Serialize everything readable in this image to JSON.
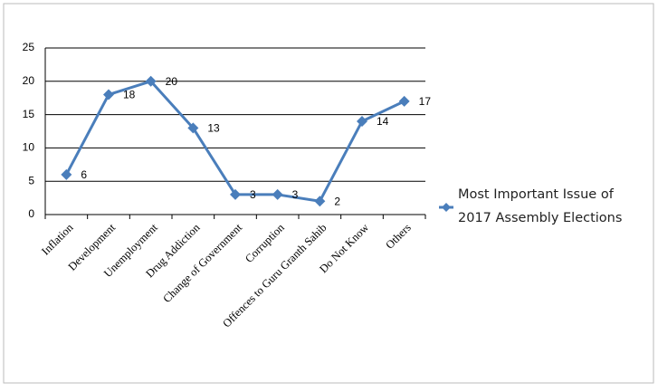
{
  "chart_data": {
    "type": "line",
    "categories": [
      "Inflation",
      "Development",
      "Unemployment",
      "Drug Addiction",
      "Change of Government",
      "Corruption",
      "Offences to Guru Granth Sahib",
      "Do Not Know",
      "Others"
    ],
    "series": [
      {
        "name": "Most Important Issue of 2017 Assembly Elections",
        "color": "#4a7ebb",
        "values": [
          6,
          18,
          20,
          13,
          3,
          3,
          2,
          14,
          17
        ]
      }
    ],
    "ylim": [
      0,
      25
    ],
    "yticks": [
      0,
      5,
      10,
      15,
      20,
      25
    ],
    "grid": true,
    "legend": "right",
    "data_labels": true
  }
}
